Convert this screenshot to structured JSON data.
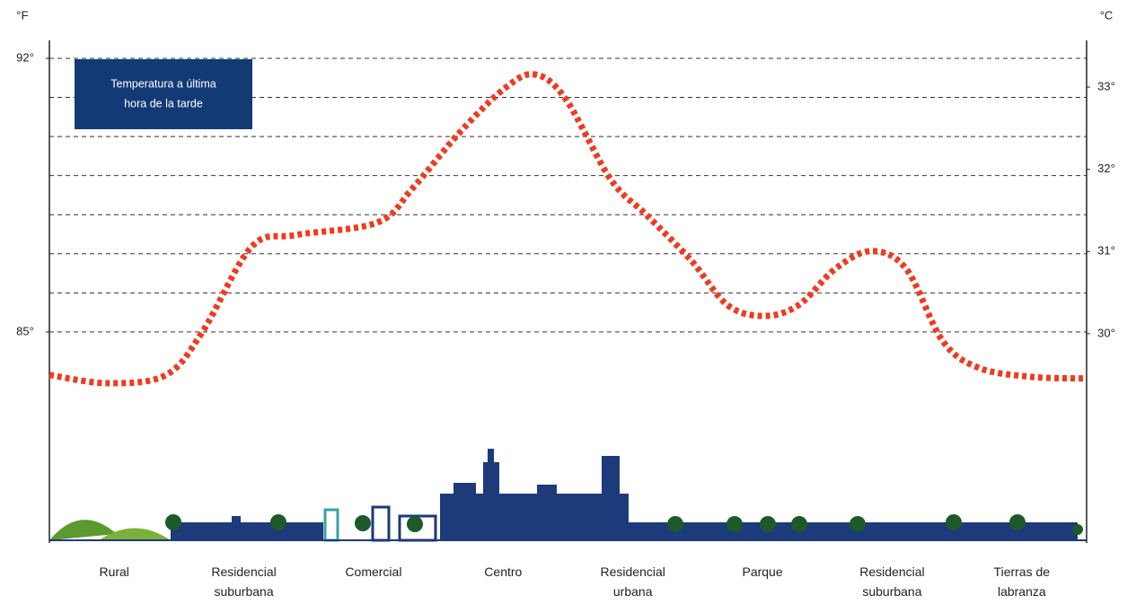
{
  "chart_data": {
    "type": "line",
    "y_label": "°F",
    "y2_label": "°C",
    "annotation": [
      "Temperatura a última",
      "hora de la tarde"
    ],
    "categories": [
      "Rural",
      "Residencial suburbana",
      "Comercial",
      "Centro",
      "Residencial urbana",
      "Parque",
      "Residencial suburbana",
      "Tierras de labranza"
    ],
    "xlim": [
      -0.5,
      7.5
    ],
    "ylim": [
      83,
      92
    ],
    "yticks": [
      {
        "value": 92,
        "label": "92°"
      },
      {
        "value": 85,
        "label": "85°"
      }
    ],
    "minor_yticks": [
      92,
      91,
      90,
      89,
      88,
      87,
      86,
      85
    ],
    "y2lim": [
      29.07,
      33.35
    ],
    "y2ticks": [
      {
        "value": 33,
        "label": "33°"
      },
      {
        "value": 32,
        "label": "32°"
      },
      {
        "value": 31,
        "label": "31°"
      },
      {
        "value": 30,
        "label": "30°"
      }
    ],
    "grid": true,
    "series": [
      {
        "color": "#ee3b1f",
        "x": [
          -0.5,
          -0.05,
          0.4,
          0.68,
          1.06,
          1.4,
          2.03,
          2.3,
          2.65,
          3.0,
          3.24,
          3.48,
          3.83,
          4.11,
          4.45,
          4.73,
          5.01,
          5.28,
          5.56,
          5.84,
          6.11,
          6.39,
          6.67,
          7.08,
          7.5
        ],
        "values": [
          83.9,
          83.69,
          83.9,
          85.0,
          87.18,
          87.48,
          87.8,
          88.67,
          90.05,
          91.2,
          91.59,
          90.97,
          88.9,
          87.98,
          86.83,
          85.69,
          85.41,
          85.69,
          86.61,
          87.07,
          86.61,
          84.77,
          84.08,
          83.85,
          83.81
        ]
      }
    ]
  }
}
